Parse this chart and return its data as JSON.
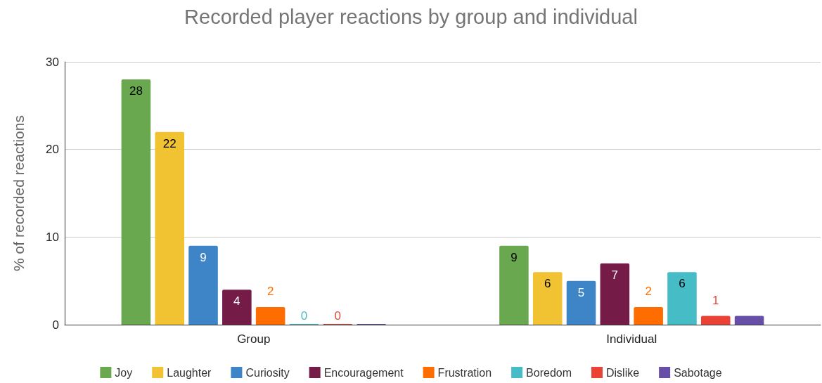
{
  "chart_data": {
    "type": "bar",
    "title": "Recorded player reactions by group and individual",
    "ylabel": "% of recorded reactions",
    "categories": [
      "Group",
      "Individual"
    ],
    "series": [
      {
        "name": "Joy",
        "color": "#6aa84f",
        "values": [
          28,
          9
        ],
        "value_labels": [
          "28",
          "9"
        ]
      },
      {
        "name": "Laughter",
        "color": "#f1c232",
        "values": [
          22,
          6
        ],
        "value_labels": [
          "22",
          "6"
        ]
      },
      {
        "name": "Curiosity",
        "color": "#3d85c6",
        "values": [
          9,
          5
        ],
        "value_labels": [
          "9",
          "5"
        ]
      },
      {
        "name": "Encouragement",
        "color": "#741b47",
        "values": [
          4,
          7
        ],
        "value_labels": [
          "4",
          "7"
        ]
      },
      {
        "name": "Frustration",
        "color": "#ff6d01",
        "values": [
          2,
          2
        ],
        "value_labels": [
          "2",
          "2"
        ]
      },
      {
        "name": "Boredom",
        "color": "#46bdc6",
        "values": [
          0,
          6
        ],
        "value_labels": [
          "0",
          "6"
        ]
      },
      {
        "name": "Dislike",
        "color": "#ea4335",
        "values": [
          0,
          1
        ],
        "value_labels": [
          "0",
          "1"
        ]
      },
      {
        "name": "Sabotage",
        "color": "#674ea7",
        "values": [
          0,
          1
        ],
        "value_labels": [
          null,
          null
        ]
      }
    ],
    "ylim": [
      0,
      30
    ],
    "yticks": [
      0,
      10,
      20,
      30
    ],
    "grid": "y",
    "legend": "bottom"
  }
}
